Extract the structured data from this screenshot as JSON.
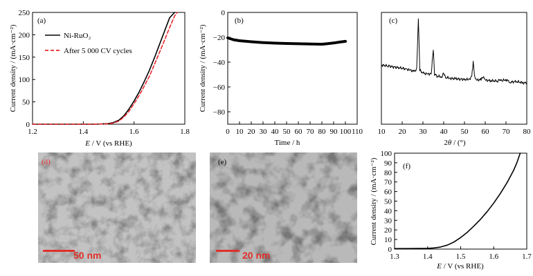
{
  "chart_data": [
    {
      "panel": "(a)",
      "type": "line",
      "xlabel": "E / V (vs RHE)",
      "xlabel_italic": "E",
      "xlabel_rest": " / V (vs RHE)",
      "ylabel": "Current density / (mA·cm⁻²)",
      "xlim": [
        1.2,
        1.8
      ],
      "ylim": [
        0,
        250
      ],
      "xticks": [
        "1.2",
        "1.4",
        "1.6",
        "1.8"
      ],
      "yticks": [
        "0",
        "50",
        "100",
        "150",
        "200",
        "250"
      ],
      "legend_position": "top-left",
      "series": [
        {
          "name": "Ni-RuO₂",
          "color": "#000000",
          "dash": "solid",
          "x": [
            1.2,
            1.3,
            1.4,
            1.45,
            1.5,
            1.52,
            1.54,
            1.56,
            1.58,
            1.6,
            1.62,
            1.64,
            1.66,
            1.68,
            1.7,
            1.72,
            1.74,
            1.76
          ],
          "y": [
            0,
            0,
            0,
            0,
            1.5,
            4,
            9,
            19,
            34,
            52,
            72,
            95,
            120,
            148,
            178,
            208,
            238,
            250
          ]
        },
        {
          "name": "After 5 000 CV cycles",
          "color": "#e8262b",
          "dash": "dashed",
          "x": [
            1.2,
            1.3,
            1.4,
            1.45,
            1.5,
            1.52,
            1.54,
            1.56,
            1.58,
            1.6,
            1.62,
            1.64,
            1.66,
            1.68,
            1.7,
            1.72,
            1.74,
            1.76,
            1.77
          ],
          "y": [
            0,
            0,
            0,
            0,
            1,
            3,
            7,
            16,
            29,
            46,
            64,
            85,
            107,
            133,
            160,
            188,
            216,
            242,
            250
          ]
        }
      ]
    },
    {
      "panel": "(b)",
      "type": "line",
      "xlabel": "Time / h",
      "ylabel": "Current density / (mA·cm⁻²)",
      "xlim": [
        0,
        110
      ],
      "ylim": [
        -90,
        0
      ],
      "xticks": [
        "0",
        "10",
        "20",
        "30",
        "40",
        "50",
        "60",
        "70",
        "80",
        "90",
        "100",
        "110"
      ],
      "yticks": [
        "0",
        "−20",
        "−40",
        "−60",
        "−80"
      ],
      "series": [
        {
          "color": "#000000",
          "x": [
            0,
            5,
            10,
            20,
            30,
            40,
            50,
            60,
            70,
            80,
            85,
            90,
            95,
            100
          ],
          "y": [
            -20.5,
            -22,
            -22.8,
            -23.6,
            -24.3,
            -24.7,
            -25,
            -25.2,
            -25.4,
            -25.6,
            -25.1,
            -24.6,
            -23.9,
            -23.3
          ]
        }
      ]
    },
    {
      "panel": "(c)",
      "type": "line",
      "xlabel": "2θ / (°)",
      "xlabel_italic": "θ",
      "xticks": [
        "10",
        "20",
        "30",
        "40",
        "50",
        "60",
        "70",
        "80"
      ],
      "xlim": [
        10,
        80
      ],
      "y_units": "relative intensity (axis not labeled)",
      "series": [
        {
          "color": "#000000",
          "x": [
            10,
            14,
            18,
            22,
            24,
            26,
            27,
            27.8,
            28.5,
            30,
            32,
            34,
            35,
            35.6,
            37,
            39,
            40,
            41,
            43,
            46,
            50,
            52,
            53.5,
            54.2,
            55,
            56,
            58,
            59,
            60,
            63,
            66,
            67,
            68,
            70,
            72,
            75,
            78,
            80
          ],
          "y": [
            0.3,
            0.28,
            0.26,
            0.24,
            0.22,
            0.2,
            0.24,
            1.0,
            0.22,
            0.18,
            0.16,
            0.17,
            0.55,
            0.16,
            0.13,
            0.12,
            0.18,
            0.11,
            0.1,
            0.09,
            0.08,
            0.08,
            0.12,
            0.34,
            0.1,
            0.07,
            0.08,
            0.12,
            0.07,
            0.06,
            0.06,
            0.08,
            0.06,
            0.08,
            0.04,
            0.05,
            0.03,
            0.03
          ]
        }
      ]
    },
    {
      "panel": "(f)",
      "type": "line",
      "xlabel": "E / V (vs RHE)",
      "xlabel_italic": "E",
      "xlabel_rest": " / V (vs RHE)",
      "ylabel": "Current density / (mA·cm⁻²)",
      "xlim": [
        1.3,
        1.7
      ],
      "ylim": [
        0,
        100
      ],
      "xticks": [
        "1.3",
        "1.4",
        "1.5",
        "1.6",
        "1.7"
      ],
      "yticks": [
        "0",
        "10",
        "20",
        "30",
        "40",
        "50",
        "60",
        "70",
        "80",
        "90",
        "100"
      ],
      "series": [
        {
          "color": "#000000",
          "x": [
            1.3,
            1.35,
            1.4,
            1.42,
            1.44,
            1.46,
            1.48,
            1.5,
            1.52,
            1.54,
            1.56,
            1.58,
            1.6,
            1.62,
            1.64,
            1.66,
            1.67,
            1.68
          ],
          "y": [
            0.5,
            0.6,
            0.8,
            1.2,
            2.2,
            4.2,
            7.5,
            12,
            17.5,
            24,
            31,
            39,
            48,
            58,
            69,
            82,
            90,
            100
          ]
        }
      ]
    }
  ],
  "images": [
    {
      "panel": "(d)",
      "scale_bar": "50 nm"
    },
    {
      "panel": "(e)",
      "scale_bar": "20 nm"
    }
  ]
}
